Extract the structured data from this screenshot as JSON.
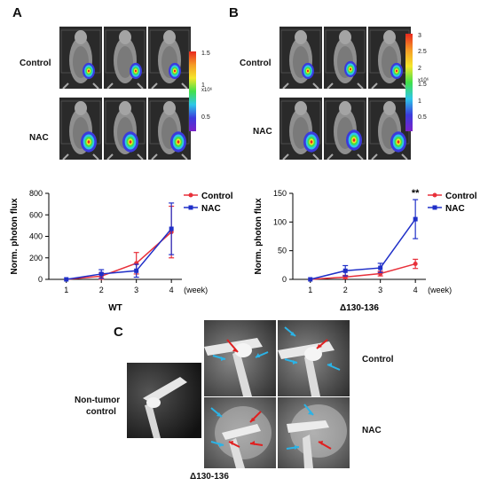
{
  "panel_a": {
    "letter": "A",
    "row_labels": [
      "Control",
      "NAC"
    ],
    "colorbar": {
      "ticks": [
        "1.5",
        "1",
        "0.5"
      ],
      "unit": "x10⁶"
    }
  },
  "panel_b": {
    "letter": "B",
    "row_labels": [
      "Control",
      "NAC"
    ],
    "colorbar": {
      "ticks": [
        "3",
        "2.5",
        "2",
        "1.5",
        "1",
        "0.5"
      ],
      "unit": "x10⁶"
    }
  },
  "panel_c": {
    "letter": "C",
    "labels": {
      "non_tumor": [
        "Non-tumor",
        "control"
      ],
      "control": "Control",
      "nac": "NAC",
      "genotype": "Δ130-136"
    }
  },
  "chart_data": [
    {
      "type": "line",
      "title": "WT",
      "xlabel": "(week)",
      "ylabel": "Norm. photon flux",
      "x": [
        1,
        2,
        3,
        4
      ],
      "ylim": [
        0,
        800
      ],
      "yticks": [
        0,
        200,
        400,
        600,
        800
      ],
      "legend": "top-right",
      "grid": false,
      "series": [
        {
          "name": "Control",
          "color": "#e8303a",
          "values": [
            0,
            30,
            150,
            440
          ],
          "errors": [
            0,
            30,
            100,
            240
          ]
        },
        {
          "name": "NAC",
          "color": "#1f2fc8",
          "values": [
            0,
            50,
            80,
            470
          ],
          "errors": [
            0,
            40,
            60,
            240
          ]
        }
      ],
      "annotations": []
    },
    {
      "type": "line",
      "title": "Δ130-136",
      "xlabel": "(week)",
      "ylabel": "Norm. photon flux",
      "x": [
        1,
        2,
        3,
        4
      ],
      "ylim": [
        0,
        150
      ],
      "yticks": [
        0,
        50,
        100,
        150
      ],
      "legend": "top-right",
      "grid": false,
      "series": [
        {
          "name": "Control",
          "color": "#e8303a",
          "values": [
            0,
            4,
            10,
            27
          ],
          "errors": [
            0,
            3,
            4,
            8
          ]
        },
        {
          "name": "NAC",
          "color": "#1f2fc8",
          "values": [
            0,
            15,
            20,
            105
          ],
          "errors": [
            0,
            9,
            8,
            34
          ]
        }
      ],
      "annotations": [
        {
          "x": 4,
          "text": "**"
        }
      ]
    }
  ]
}
